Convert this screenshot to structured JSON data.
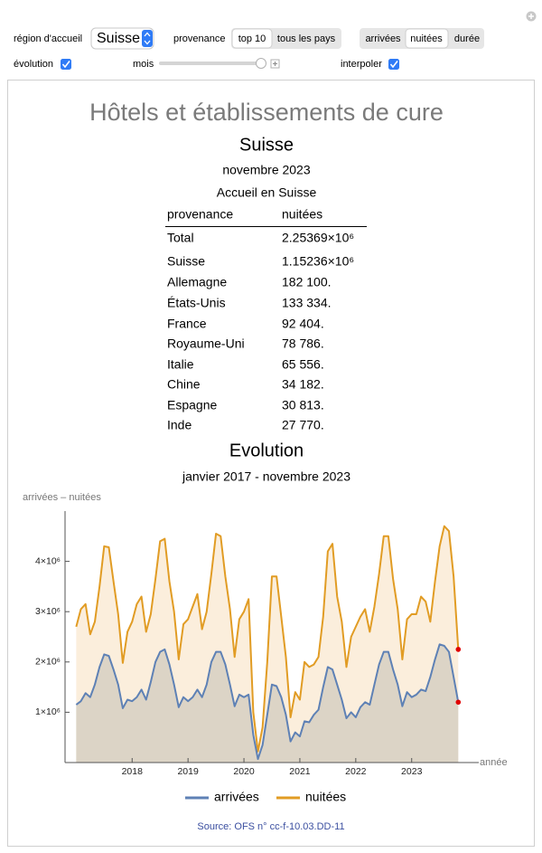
{
  "controls": {
    "region_label": "région d'accueil",
    "region_value": "Suisse",
    "provenance_label": "provenance",
    "provenance_options": [
      "top 10",
      "tous les pays"
    ],
    "measure_options": [
      "arrivées",
      "nuitées",
      "durée"
    ],
    "evolution_label": "évolution",
    "month_label": "mois",
    "interpolate_label": "interpoler"
  },
  "header": {
    "title": "Hôtels et établissements de cure",
    "region": "Suisse",
    "period": "novembre 2023",
    "table_caption": "Accueil en Suisse"
  },
  "table": {
    "columns": [
      "provenance",
      "nuitées"
    ],
    "rows": [
      [
        "Total",
        "2.25369×10⁶"
      ],
      [
        "Suisse",
        "1.15236×10⁶"
      ],
      [
        "Allemagne",
        "182 100."
      ],
      [
        "États-Unis",
        "133 334."
      ],
      [
        "France",
        "92 404."
      ],
      [
        "Royaume-Uni",
        "78 786."
      ],
      [
        "Italie",
        "65 556."
      ],
      [
        "Chine",
        "34 182."
      ],
      [
        "Espagne",
        "30 813."
      ],
      [
        "Inde",
        "27 770."
      ]
    ]
  },
  "chart_data": {
    "type": "area",
    "title": "Evolution",
    "subtitle": "janvier 2017 - novembre 2023",
    "y_label": "arrivées – nuitées",
    "x_label": "année",
    "x": [
      2017,
      2017.083,
      2017.167,
      2017.25,
      2017.333,
      2017.417,
      2017.5,
      2017.583,
      2017.667,
      2017.75,
      2017.833,
      2017.917,
      2018,
      2018.083,
      2018.167,
      2018.25,
      2018.333,
      2018.417,
      2018.5,
      2018.583,
      2018.667,
      2018.75,
      2018.833,
      2018.917,
      2019,
      2019.083,
      2019.167,
      2019.25,
      2019.333,
      2019.417,
      2019.5,
      2019.583,
      2019.667,
      2019.75,
      2019.833,
      2019.917,
      2020,
      2020.083,
      2020.167,
      2020.25,
      2020.333,
      2020.417,
      2020.5,
      2020.583,
      2020.667,
      2020.75,
      2020.833,
      2020.917,
      2021,
      2021.083,
      2021.167,
      2021.25,
      2021.333,
      2021.417,
      2021.5,
      2021.583,
      2021.667,
      2021.75,
      2021.833,
      2021.917,
      2022,
      2022.083,
      2022.167,
      2022.25,
      2022.333,
      2022.417,
      2022.5,
      2022.583,
      2022.667,
      2022.75,
      2022.833,
      2022.917,
      2023,
      2023.083,
      2023.167,
      2023.25,
      2023.333,
      2023.417,
      2023.5,
      2023.583,
      2023.667,
      2023.75,
      2023.833
    ],
    "series": [
      {
        "name": "arrivées",
        "color": "#5e81b5",
        "fill": "#dcd4c6",
        "values": [
          1150000,
          1220000,
          1380000,
          1300000,
          1550000,
          1900000,
          2150000,
          2120000,
          1850000,
          1550000,
          1080000,
          1250000,
          1220000,
          1300000,
          1450000,
          1250000,
          1600000,
          2000000,
          2200000,
          2250000,
          1950000,
          1550000,
          1100000,
          1300000,
          1220000,
          1300000,
          1450000,
          1300000,
          1550000,
          2000000,
          2200000,
          2200000,
          1950000,
          1550000,
          1120000,
          1350000,
          1300000,
          1350000,
          550000,
          70000,
          350000,
          950000,
          1550000,
          1520000,
          1300000,
          950000,
          420000,
          600000,
          520000,
          820000,
          800000,
          950000,
          1050000,
          1500000,
          1900000,
          1850000,
          1550000,
          1250000,
          880000,
          1000000,
          900000,
          1100000,
          1200000,
          1150000,
          1550000,
          1950000,
          2200000,
          2200000,
          1850000,
          1550000,
          1120000,
          1400000,
          1300000,
          1350000,
          1450000,
          1420000,
          1700000,
          2050000,
          2350000,
          2320000,
          2200000,
          1700000,
          1200000
        ]
      },
      {
        "name": "nuitées",
        "color": "#e19c24",
        "fill": "#fbeedc",
        "values": [
          2700000,
          3050000,
          3150000,
          2550000,
          2800000,
          3500000,
          4300000,
          4280000,
          3600000,
          2950000,
          1980000,
          2600000,
          2800000,
          3150000,
          3300000,
          2600000,
          2950000,
          3650000,
          4400000,
          4450000,
          3600000,
          3000000,
          2050000,
          2750000,
          2850000,
          3100000,
          3350000,
          2650000,
          3000000,
          3750000,
          4550000,
          4500000,
          3700000,
          3050000,
          2100000,
          2850000,
          3000000,
          3250000,
          1000000,
          220000,
          700000,
          2000000,
          3700000,
          3700000,
          2900000,
          2100000,
          900000,
          1400000,
          1250000,
          2000000,
          1900000,
          1950000,
          2100000,
          2900000,
          4200000,
          4350000,
          3300000,
          2800000,
          1900000,
          2500000,
          2700000,
          2900000,
          3050000,
          2600000,
          3100000,
          3750000,
          4500000,
          4500000,
          3650000,
          3050000,
          2050000,
          2850000,
          2950000,
          2950000,
          3300000,
          3200000,
          2800000,
          3600000,
          4300000,
          4700000,
          4600000,
          3700000,
          2250000
        ]
      }
    ],
    "end_marker_color": "#e00000",
    "xlim": [
      2016.8,
      2024.2
    ],
    "ylim": [
      0,
      5000000
    ],
    "xticks": [
      2018,
      2019,
      2020,
      2021,
      2022,
      2023
    ],
    "yticks": [
      {
        "value": 1000000,
        "label": "1×10⁶"
      },
      {
        "value": 2000000,
        "label": "2×10⁶"
      },
      {
        "value": 3000000,
        "label": "3×10⁶"
      },
      {
        "value": 4000000,
        "label": "4×10⁶"
      }
    ],
    "legend": "bottom"
  },
  "footer": {
    "source": "Source: OFS n° cc-f-10.03.DD-11"
  }
}
